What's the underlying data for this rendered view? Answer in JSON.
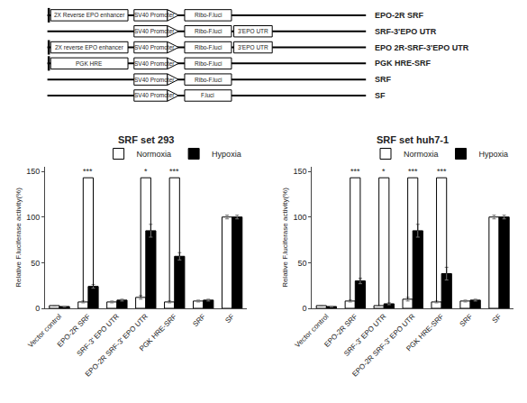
{
  "chart_data": [
    {
      "type": "diagram",
      "categories": [
        "EPO-2R SRF",
        "SRF-3'EPO UTR",
        "EPO 2R-SRF-3'EPO UTR",
        "PGK HRE-SRF",
        "SRF",
        "SF"
      ],
      "annotations": [
        [
          "2X Reverse EPO enhancer",
          "SV40 Promoter",
          "Ribo-F.luci",
          null
        ],
        [
          null,
          "SV40 Promoter",
          "Ribo-F.luci",
          "3'EPO UTR"
        ],
        [
          "2X reverse EPO enhancer",
          "SV40 Promoter",
          "Ribo-F.luci",
          "3'EPO UTR"
        ],
        [
          "PGK HRE",
          "SV40 Promoter",
          "Ribo-F.luci",
          null
        ],
        [
          null,
          "SV40 Promoter",
          "Ribo-F.luci",
          null
        ],
        [
          null,
          "SV40 Promoter",
          "F.luci",
          null
        ]
      ]
    },
    {
      "type": "bar",
      "title": "SRF set 293",
      "categories": [
        "Vector control",
        "EPO-2R SRF",
        "SRF-3' EPO UTR",
        "EPO-2R SRF-3' EPO UTR",
        "PGK HRE-SRF",
        "SRF",
        "SF"
      ],
      "ylabel": "Relative F.luciferase activity(%)",
      "ylim": [
        0,
        155
      ],
      "yticks": [
        0,
        50,
        100,
        150
      ],
      "grid": false,
      "legend": "upper right",
      "series": [
        {
          "name": "Normoxia",
          "color": "white",
          "values": [
            3,
            7,
            7,
            12,
            7,
            8,
            100
          ],
          "errors": [
            0.5,
            1,
            1,
            2,
            1,
            1,
            2
          ]
        },
        {
          "name": "Hypoxia",
          "color": "black",
          "values": [
            2,
            24,
            9,
            85,
            57,
            9,
            100
          ],
          "errors": [
            0.5,
            2,
            1,
            7,
            4,
            1,
            2
          ]
        }
      ],
      "annotations": [
        {
          "category": "EPO-2R SRF",
          "y": 143,
          "y_from": [
            7,
            24
          ],
          "text": "***"
        },
        {
          "category": "EPO-2R SRF-3' EPO UTR",
          "y": 143,
          "y_from": [
            12,
            85
          ],
          "text": "*"
        },
        {
          "category": "PGK HRE-SRF",
          "y": 143,
          "y_from": [
            7,
            57
          ],
          "text": "***"
        }
      ]
    },
    {
      "type": "bar",
      "title": "SRF set huh7-1",
      "categories": [
        "Vector control",
        "EPO-2R SRF",
        "SRF-3' EPO UTR",
        "EPO-2R SRF-3' EPO UTR",
        "PGK HRE-SRF",
        "SRF",
        "SF"
      ],
      "ylabel": "Relative F.luciferase activity(%)",
      "ylim": [
        0,
        155
      ],
      "yticks": [
        0,
        50,
        100,
        150
      ],
      "grid": false,
      "legend": "upper right",
      "series": [
        {
          "name": "Normoxia",
          "color": "white",
          "values": [
            3,
            8,
            3,
            10,
            7,
            8,
            100
          ],
          "errors": [
            0.5,
            1,
            0.5,
            2,
            1,
            1,
            2
          ]
        },
        {
          "name": "Hypoxia",
          "color": "black",
          "values": [
            2,
            30,
            5,
            85,
            38,
            9,
            100
          ],
          "errors": [
            0.5,
            3,
            1,
            7,
            7,
            1,
            2
          ]
        }
      ],
      "annotations": [
        {
          "category": "EPO-2R SRF",
          "y": 143,
          "y_from": [
            8,
            30
          ],
          "text": "***"
        },
        {
          "category": "SRF-3' EPO UTR",
          "y": 143,
          "y_from": [
            3,
            5
          ],
          "text": "*"
        },
        {
          "category": "EPO-2R SRF-3' EPO UTR",
          "y": 143,
          "y_from": [
            10,
            85
          ],
          "text": "***"
        },
        {
          "category": "PGK HRE-SRF",
          "y": 143,
          "y_from": [
            7,
            38
          ],
          "text": "***"
        }
      ]
    }
  ]
}
